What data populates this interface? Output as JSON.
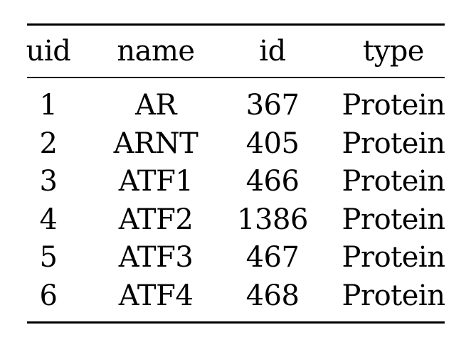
{
  "table": {
    "headers": [
      "uid",
      "name",
      "id",
      "type"
    ],
    "rows": [
      [
        "1",
        "AR",
        "367",
        "Protein"
      ],
      [
        "2",
        "ARNT",
        "405",
        "Protein"
      ],
      [
        "3",
        "ATF1",
        "466",
        "Protein"
      ],
      [
        "4",
        "ATF2",
        "1386",
        "Protein"
      ],
      [
        "5",
        "ATF3",
        "467",
        "Protein"
      ],
      [
        "6",
        "ATF4",
        "468",
        "Protein"
      ]
    ]
  }
}
